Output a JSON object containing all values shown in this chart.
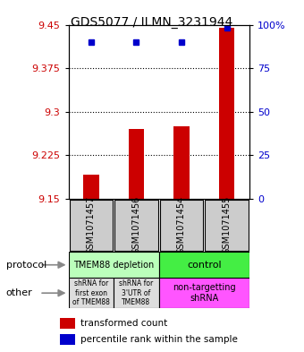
{
  "title": "GDS5077 / ILMN_3231944",
  "samples": [
    "GSM1071457",
    "GSM1071456",
    "GSM1071454",
    "GSM1071455"
  ],
  "transformed_counts": [
    9.192,
    9.27,
    9.275,
    9.445
  ],
  "percentile_ranks": [
    90,
    90,
    90,
    98
  ],
  "ylim": [
    9.15,
    9.45
  ],
  "y_ticks": [
    9.15,
    9.225,
    9.3,
    9.375,
    9.45
  ],
  "y2_ticks": [
    0,
    25,
    50,
    75,
    100
  ],
  "y2_labels": [
    "0",
    "25",
    "50",
    "75",
    "100%"
  ],
  "bar_color": "#cc0000",
  "dot_color": "#0000cc",
  "protocol_labels": [
    "TMEM88 depletion",
    "control"
  ],
  "protocol_color_left": "#bbffbb",
  "protocol_color_right": "#44ee44",
  "other_color_left": "#dddddd",
  "other_color_right": "#ff55ff",
  "sample_box_color": "#cccccc",
  "bg_color": "#ffffff",
  "plot_bg": "#ffffff",
  "left_label_color": "#cc0000",
  "right_label_color": "#0000cc",
  "legend_red": "#cc0000",
  "legend_blue": "#0000cc"
}
